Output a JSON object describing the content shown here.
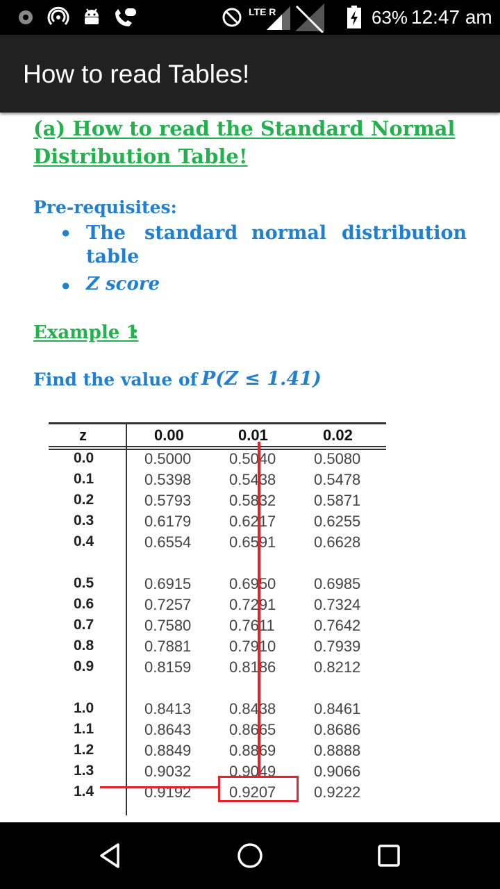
{
  "status_bar": {
    "network_label": "LTE R",
    "battery_percent": "63%",
    "time": "12:47 am",
    "icons": [
      "record-icon",
      "hotspot-icon",
      "android-icon",
      "call-icon",
      "no-disturb-icon",
      "signal-icon",
      "no-signal-icon",
      "battery-charging-icon"
    ]
  },
  "app_bar": {
    "title": "How to read Tables!"
  },
  "content": {
    "section_title_line1": "(a) How to read the Standard Normal",
    "section_title_line2": "Distribution Table!",
    "prereq_title": "Pre-requisites:",
    "prereq_items": [
      {
        "line1": [
          "The",
          "standard",
          "normal",
          "distribution"
        ],
        "line2": "table"
      },
      {
        "line1": [
          "Z score"
        ],
        "line2": ""
      }
    ],
    "example_title": "Example 1",
    "example_colon": ":",
    "find_text": "Find the value of ",
    "formula_text": "P(Z ≤ 1.41)",
    "table": {
      "header": [
        "z",
        "0.00",
        "0.01",
        "0.02"
      ],
      "rows": [
        [
          "0.0",
          "0.5000",
          "0.5040",
          "0.5080"
        ],
        [
          "0.1",
          "0.5398",
          "0.5438",
          "0.5478"
        ],
        [
          "0.2",
          "0.5793",
          "0.5832",
          "0.5871"
        ],
        [
          "0.3",
          "0.6179",
          "0.6217",
          "0.6255"
        ],
        [
          "0.4",
          "0.6554",
          "0.6591",
          "0.6628"
        ],
        [
          "0.5",
          "0.6915",
          "0.6950",
          "0.6985"
        ],
        [
          "0.6",
          "0.7257",
          "0.7291",
          "0.7324"
        ],
        [
          "0.7",
          "0.7580",
          "0.7611",
          "0.7642"
        ],
        [
          "0.8",
          "0.7881",
          "0.7910",
          "0.7939"
        ],
        [
          "0.9",
          "0.8159",
          "0.8186",
          "0.8212"
        ],
        [
          "1.0",
          "0.8413",
          "0.8438",
          "0.8461"
        ],
        [
          "1.1",
          "0.8643",
          "0.8665",
          "0.8686"
        ],
        [
          "1.2",
          "0.8849",
          "0.8869",
          "0.8888"
        ],
        [
          "1.3",
          "0.9032",
          "0.9049",
          "0.9066"
        ],
        [
          "1.4",
          "0.9192",
          "0.9207",
          "0.9222"
        ]
      ],
      "highlight": {
        "row": "1.4",
        "column": "0.01",
        "value": "0.9207"
      },
      "highlight_color": "#e8202a"
    }
  },
  "nav_bar": {
    "buttons": [
      "back-icon",
      "home-icon",
      "recents-icon"
    ]
  },
  "colors": {
    "heading_green": "#22b14c",
    "text_blue": "#1f7fd1",
    "app_bar": "#212121"
  }
}
